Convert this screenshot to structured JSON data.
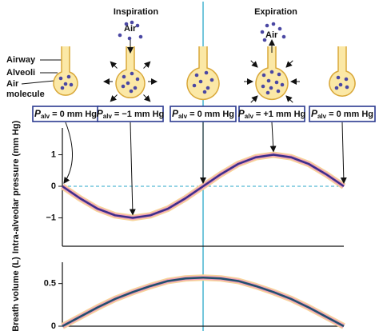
{
  "phases": [
    "Inspiration",
    "Expiration"
  ],
  "diagram_labels": {
    "airway": "Airway",
    "alveoli": "Alveoli",
    "air_molecule": [
      "Air",
      "molecule"
    ]
  },
  "air_labels": [
    "Air",
    "Air"
  ],
  "pressure_boxes": [
    {
      "symbol": "P",
      "subscript": "alv",
      "text": "= 0 mm Hg"
    },
    {
      "symbol": "P",
      "subscript": "alv",
      "text": "= −1 mm Hg"
    },
    {
      "symbol": "P",
      "subscript": "alv",
      "text": "= 0 mm Hg"
    },
    {
      "symbol": "P",
      "subscript": "alv",
      "text": "= +1 mm Hg"
    },
    {
      "symbol": "P",
      "subscript": "alv",
      "text": "= 0 mm Hg"
    }
  ],
  "chart_data": [
    {
      "type": "line",
      "y_label": "Intra-alveolar pressure (mm Hg)",
      "x": [
        0,
        0.25,
        0.5,
        0.75,
        1,
        1.25,
        1.5,
        1.75,
        2,
        2.25,
        2.5,
        2.75,
        3,
        3.25,
        3.5,
        3.75,
        4
      ],
      "series": [
        {
          "color": "#3b2f8a",
          "values": [
            0,
            -0.38,
            -0.71,
            -0.92,
            -1,
            -0.92,
            -0.71,
            -0.38,
            0,
            0.38,
            0.71,
            0.92,
            1,
            0.92,
            0.71,
            0.38,
            0
          ]
        }
      ],
      "xlim": [
        0,
        4
      ],
      "ylim": [
        -1.9,
        1.85
      ],
      "yticks": [
        1,
        0,
        {
          "value": -1,
          "label": "−1"
        }
      ]
    },
    {
      "type": "line",
      "y_label": "Breath volume (L)",
      "x": [
        0,
        0.25,
        0.5,
        0.75,
        1,
        1.25,
        1.5,
        1.75,
        2,
        2.25,
        2.5,
        2.75,
        3,
        3.25,
        3.5,
        3.75,
        4
      ],
      "series": [
        {
          "color": "#1f4f6e",
          "values": [
            0,
            0.11,
            0.22,
            0.32,
            0.4,
            0.47,
            0.53,
            0.56,
            0.57,
            0.56,
            0.53,
            0.47,
            0.4,
            0.32,
            0.22,
            0.11,
            0
          ]
        }
      ],
      "xlim": [
        0,
        4
      ],
      "ylim": [
        0,
        0.75
      ],
      "yticks": [
        0,
        0.5
      ]
    }
  ]
}
